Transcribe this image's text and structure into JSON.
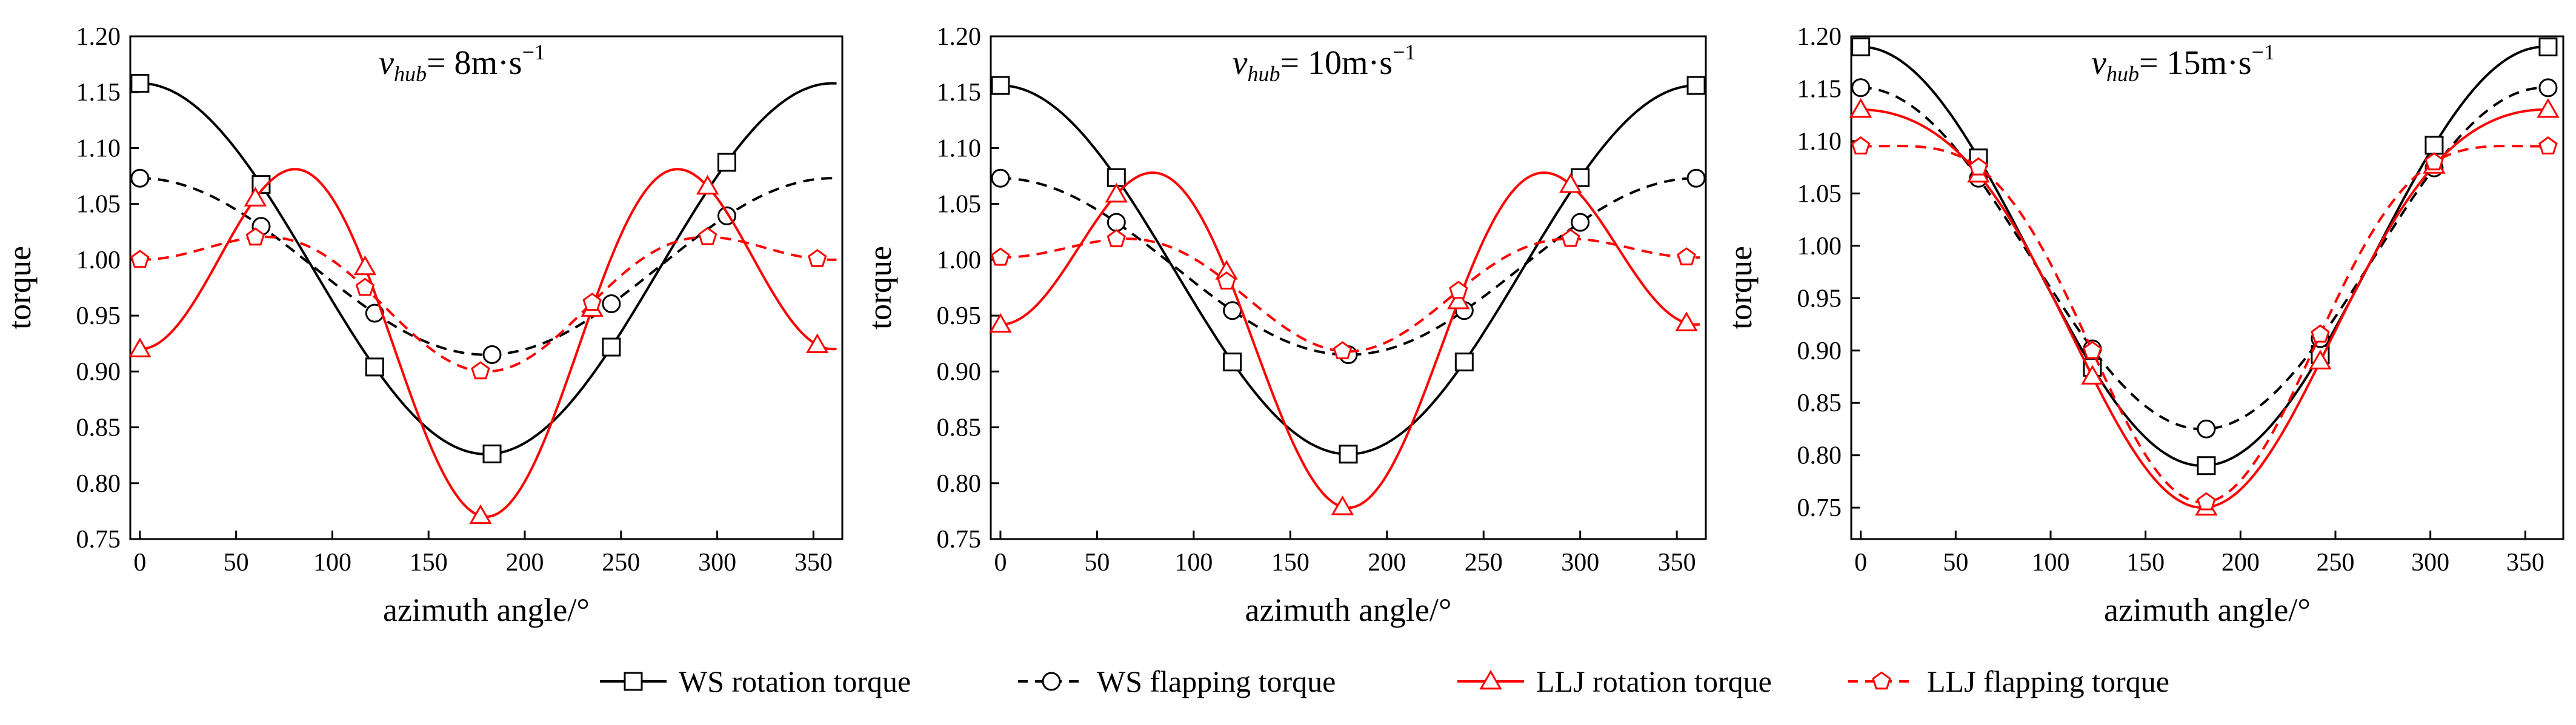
{
  "legend": [
    {
      "label": "WS rotation torque",
      "color": "#000000",
      "dashed": false,
      "marker": "square"
    },
    {
      "label": "WS flapping torque",
      "color": "#000000",
      "dashed": true,
      "marker": "circle"
    },
    {
      "label": "LLJ rotation torque",
      "color": "#ff0000",
      "dashed": false,
      "marker": "triangle"
    },
    {
      "label": "LLJ flapping torque",
      "color": "#ff0000",
      "dashed": true,
      "marker": "pentagon"
    }
  ],
  "chart_data": [
    {
      "type": "line",
      "title_prefix": "v",
      "title_sub": "hub",
      "title_value": "= 8m·s",
      "title_sup": "−1",
      "xlabel": "azimuth angle/°",
      "ylabel": "torque",
      "xlim": [
        -5,
        365
      ],
      "ylim": [
        0.75,
        1.2
      ],
      "xticks": [
        0,
        50,
        100,
        150,
        200,
        250,
        300,
        350
      ],
      "yticks": [
        0.75,
        0.8,
        0.85,
        0.9,
        0.95,
        1.0,
        1.05,
        1.1,
        1.15,
        1.2
      ],
      "series": [
        {
          "name": "WS rotation torque",
          "marker_x": [
            0,
            63,
            122,
            183,
            245,
            305
          ],
          "curve": "cos",
          "mean": 0.992,
          "amp": 0.166,
          "phase": 0
        },
        {
          "name": "WS flapping torque",
          "marker_x": [
            0,
            63,
            122,
            183,
            245,
            305
          ],
          "curve": "cos",
          "mean": 0.994,
          "amp": 0.079,
          "phase": 0
        },
        {
          "name": "LLJ rotation torque",
          "marker_x": [
            0,
            60,
            117,
            177,
            235,
            295,
            352
          ],
          "curve": "cos2",
          "mean": 0.96,
          "amp": 0.075,
          "amp2": 0.115,
          "phase": 0
        },
        {
          "name": "LLJ flapping torque",
          "marker_x": [
            0,
            60,
            117,
            177,
            235,
            295,
            352
          ],
          "curve": "cos2",
          "mean": 0.98,
          "amp": 0.05,
          "amp2": 0.03,
          "phase": 0
        }
      ]
    },
    {
      "type": "line",
      "title_prefix": "v",
      "title_sub": "hub",
      "title_value": "= 10m·s",
      "title_sup": "−1",
      "xlabel": "azimuth angle/°",
      "ylabel": "torque",
      "xlim": [
        -5,
        365
      ],
      "ylim": [
        0.75,
        1.2
      ],
      "xticks": [
        0,
        50,
        100,
        150,
        200,
        250,
        300,
        350
      ],
      "yticks": [
        0.75,
        0.8,
        0.85,
        0.9,
        0.95,
        1.0,
        1.05,
        1.1,
        1.15,
        1.2
      ],
      "series": [
        {
          "name": "WS rotation torque",
          "marker_x": [
            0,
            60,
            120,
            180,
            240,
            300,
            360
          ],
          "curve": "cos",
          "mean": 0.991,
          "amp": 0.165,
          "phase": 0
        },
        {
          "name": "WS flapping torque",
          "marker_x": [
            0,
            60,
            120,
            180,
            240,
            300,
            360
          ],
          "curve": "cos",
          "mean": 0.994,
          "amp": 0.079,
          "phase": 0
        },
        {
          "name": "LLJ rotation torque",
          "marker_x": [
            0,
            60,
            117,
            177,
            237,
            295,
            355
          ],
          "curve": "cos2",
          "mean": 0.965,
          "amp": 0.082,
          "amp2": 0.105,
          "phase": 0
        },
        {
          "name": "LLJ flapping torque",
          "marker_x": [
            0,
            60,
            117,
            177,
            237,
            295,
            355
          ],
          "curve": "cos2",
          "mean": 0.985,
          "amp": 0.042,
          "amp2": 0.025,
          "phase": 0
        }
      ]
    },
    {
      "type": "line",
      "title_prefix": "v",
      "title_sub": "hub",
      "title_value": "= 15m·s",
      "title_sup": "−1",
      "xlabel": "azimuth angle/°",
      "ylabel": "torque",
      "xlim": [
        -5,
        370
      ],
      "ylim": [
        0.72,
        1.2
      ],
      "xticks": [
        0,
        50,
        100,
        150,
        200,
        250,
        300,
        350
      ],
      "yticks": [
        0.75,
        0.8,
        0.85,
        0.9,
        0.95,
        1.0,
        1.05,
        1.1,
        1.15,
        1.2
      ],
      "series": [
        {
          "name": "WS rotation torque",
          "marker_x": [
            0,
            62,
            122,
            182,
            242,
            302,
            362
          ],
          "curve": "cos",
          "mean": 0.99,
          "amp": 0.2,
          "phase": 0
        },
        {
          "name": "WS flapping torque",
          "marker_x": [
            0,
            62,
            122,
            182,
            242,
            302,
            362
          ],
          "curve": "cos",
          "mean": 0.988,
          "amp": 0.163,
          "phase": 0
        },
        {
          "name": "LLJ rotation torque",
          "marker_x": [
            0,
            62,
            122,
            182,
            242,
            302,
            362
          ],
          "curve": "cos2",
          "mean": 0.965,
          "amp": 0.19,
          "amp2": 0.025,
          "phase": 0
        },
        {
          "name": "LLJ flapping torque",
          "marker_x": [
            0,
            62,
            122,
            182,
            242,
            302,
            362
          ],
          "curve": "cos2",
          "mean": 0.97,
          "amp": 0.17,
          "amp2": 0.045,
          "phase": 0
        }
      ]
    }
  ]
}
